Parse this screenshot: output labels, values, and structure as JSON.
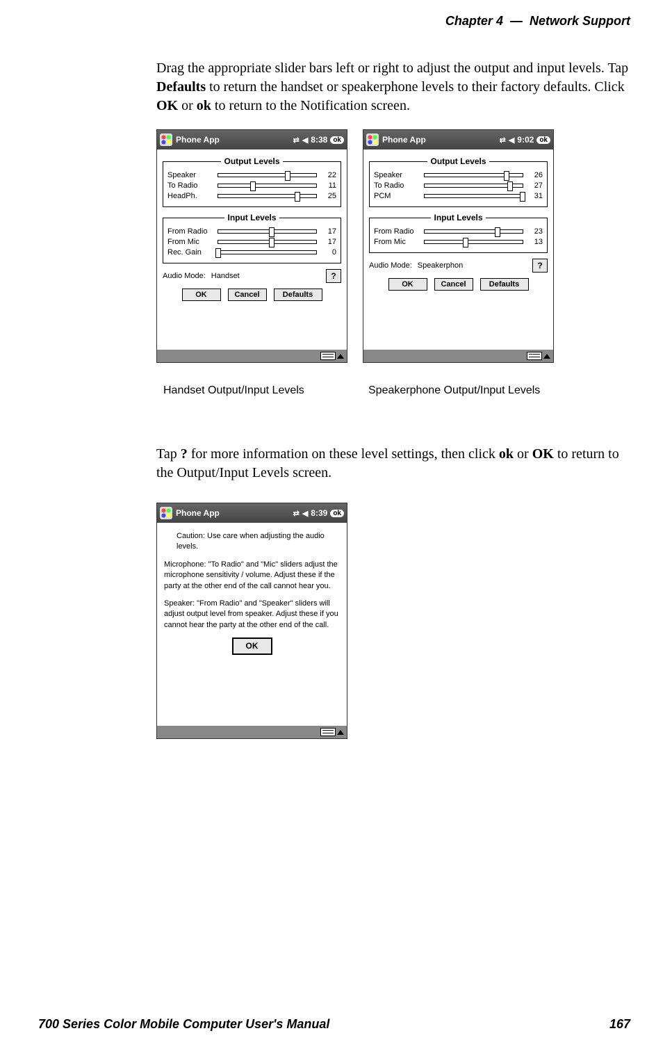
{
  "header": {
    "chapter_label": "Chapter",
    "chapter_num": "4",
    "separator": "—",
    "chapter_title": "Network Support"
  },
  "paragraph1_html": "Drag the appropriate slider bars left  or right to adjust the output and input levels. Tap <b>Defaults</b> to return the handset or speakerphone levels to their factory defaults. Click <b>OK</b> or <b>ok</b> to return to the Notification screen.",
  "paragraph2_html": "Tap <b>?</b> for more information on these level settings, then click <b>ok</b> or <b>OK</b> to return to the Output/Input Levels screen.",
  "captions": {
    "left": "Handset Output/Input Levels",
    "right": "Speakerphone Output/Input Levels"
  },
  "footer": {
    "manual_title": "700 Series Color Mobile Computer User's Manual",
    "page_number": "167"
  },
  "common": {
    "app_title": "Phone App",
    "ok_pill": "ok",
    "output_legend": "Output Levels",
    "input_legend": "Input Levels",
    "audio_mode_label": "Audio Mode:",
    "help_btn": "?",
    "ok_btn": "OK",
    "cancel_btn": "Cancel",
    "defaults_btn": "Defaults",
    "slider_max": 31
  },
  "shot1": {
    "time": "8:38",
    "output": [
      {
        "label": "Speaker",
        "value": 22
      },
      {
        "label": "To Radio",
        "value": 11
      },
      {
        "label": "HeadPh.",
        "value": 25
      }
    ],
    "input": [
      {
        "label": "From Radio",
        "value": 17
      },
      {
        "label": "From Mic",
        "value": 17
      },
      {
        "label": "Rec. Gain",
        "value": 0
      }
    ],
    "audio_mode": "Handset"
  },
  "shot2": {
    "time": "9:02",
    "output": [
      {
        "label": "Speaker",
        "value": 26
      },
      {
        "label": "To Radio",
        "value": 27
      },
      {
        "label": "PCM",
        "value": 31
      }
    ],
    "input": [
      {
        "label": "From Radio",
        "value": 23
      },
      {
        "label": "From Mic",
        "value": 13
      }
    ],
    "audio_mode": "Speakerphon"
  },
  "shot3": {
    "time": "8:39",
    "caution": "Caution:  Use care when adjusting the audio levels.",
    "mic_para": "Microphone:  \"To Radio\" and \"Mic\" sliders adjust the microphone sensitivity / volume.  Adjust these if the party at the other end of the call cannot hear you.",
    "spk_para": "Speaker:  \"From Radio\" and \"Speaker\" sliders will adjust output level from speaker.  Adjust these if you cannot hear the party at the other end of the call.",
    "ok_btn": "OK"
  }
}
